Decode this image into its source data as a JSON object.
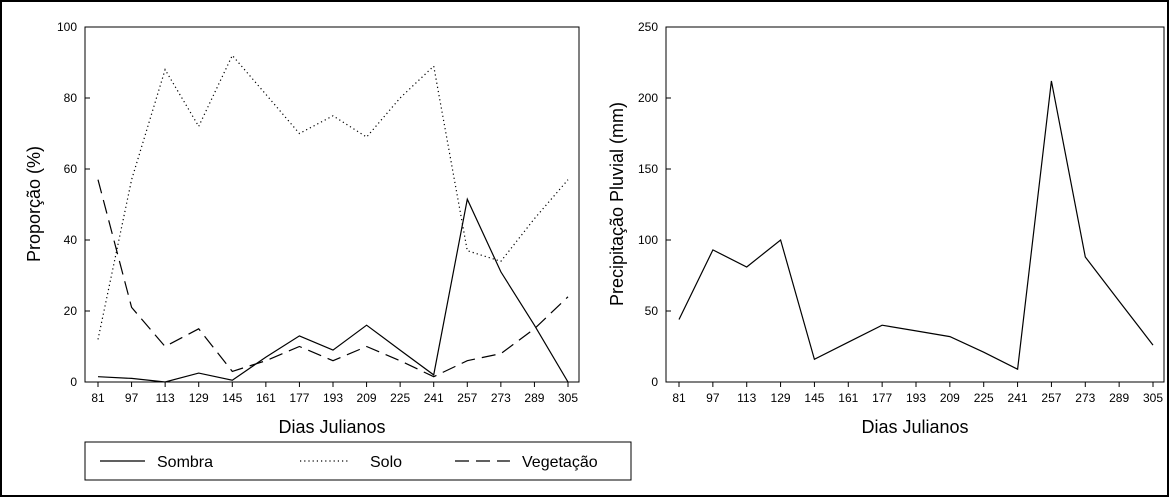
{
  "chart_data": [
    {
      "type": "line",
      "xlabel": "Dias Julianos",
      "ylabel": "Proporção (%)",
      "ylim": [
        0,
        100
      ],
      "yticks": [
        0,
        20,
        40,
        60,
        80,
        100
      ],
      "x": [
        81,
        97,
        113,
        129,
        145,
        161,
        177,
        193,
        209,
        225,
        241,
        257,
        273,
        289,
        305
      ],
      "series": [
        {
          "name": "Sombra",
          "style": "solid",
          "x": [
            81,
            97,
            113,
            129,
            145,
            161,
            177,
            193,
            209,
            225,
            241,
            257,
            273,
            289,
            305
          ],
          "values": [
            1.5,
            1,
            0,
            2.5,
            0.5,
            7,
            13,
            9,
            16,
            9,
            2,
            51.5,
            31,
            16,
            0
          ]
        },
        {
          "name": "Solo",
          "style": "dotted",
          "x": [
            81,
            97,
            113,
            129,
            145,
            161,
            177,
            193,
            209,
            225,
            241,
            257,
            273,
            289,
            305
          ],
          "values": [
            12,
            57,
            88,
            72,
            92,
            81,
            70,
            75,
            69,
            80,
            89,
            37,
            34,
            46,
            57
          ]
        },
        {
          "name": "Vegetação",
          "style": "dashed",
          "x": [
            81,
            97,
            113,
            129,
            145,
            161,
            177,
            193,
            209,
            225,
            241,
            257,
            273,
            289,
            305
          ],
          "values": [
            57,
            21,
            10,
            15,
            3,
            6,
            10,
            6,
            10,
            6,
            1.5,
            6,
            8,
            15,
            24
          ]
        }
      ],
      "legend": {
        "position": "bottom",
        "items": [
          "Sombra",
          "Solo",
          "Vegetação"
        ]
      }
    },
    {
      "type": "line",
      "xlabel": "Dias Julianos",
      "ylabel": "Precipitação Pluvial (mm)",
      "ylim": [
        0,
        250
      ],
      "yticks": [
        0,
        50,
        100,
        150,
        200,
        250
      ],
      "x": [
        81,
        97,
        113,
        129,
        145,
        161,
        177,
        193,
        209,
        225,
        241,
        257,
        273,
        289,
        305
      ],
      "series": [
        {
          "style": "solid",
          "x": [
            81,
            97,
            113,
            129,
            145,
            161,
            177,
            193,
            209,
            225,
            241,
            257,
            273,
            289,
            305
          ],
          "values": [
            44,
            93,
            81,
            100,
            16,
            28,
            40,
            36,
            32,
            21,
            9,
            212,
            88,
            57,
            26
          ]
        }
      ]
    }
  ]
}
